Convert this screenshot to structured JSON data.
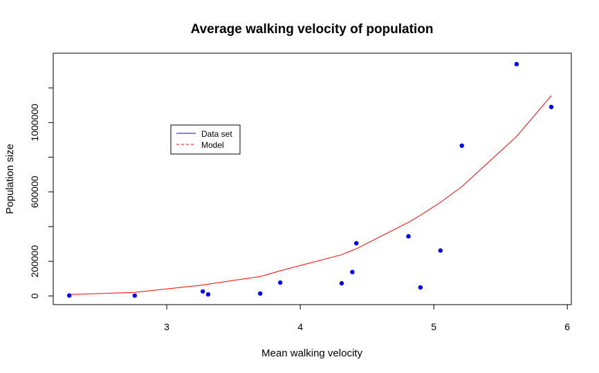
{
  "chart_data": {
    "type": "scatter",
    "title": "Average walking velocity of population",
    "xlabel": "Mean walking velocity",
    "ylabel": "Population size",
    "xlim": [
      2.15,
      6.03
    ],
    "ylim": [
      -50000,
      1400000
    ],
    "x_ticks": [
      3,
      4,
      5,
      6
    ],
    "x_tick_labels": [
      "3",
      "4",
      "5",
      "6"
    ],
    "y_ticks": [
      0,
      200000,
      600000,
      1000000
    ],
    "y_tick_labels": [
      "0",
      "200000",
      "600000",
      "1000000"
    ],
    "y_minor_ticks": [
      400000,
      800000,
      1200000
    ],
    "grid": false,
    "legend": {
      "position": "upper-left-inset",
      "entries": [
        {
          "label": "Data set",
          "color": "#0000ff",
          "line": "solid"
        },
        {
          "label": "Model",
          "color": "#ff0000",
          "line": "dashed"
        }
      ]
    },
    "series": [
      {
        "name": "Data set",
        "kind": "points",
        "color": "#0000ff",
        "x": [
          2.27,
          2.76,
          3.27,
          3.31,
          3.7,
          3.85,
          4.31,
          4.39,
          4.42,
          4.81,
          4.9,
          5.05,
          5.21,
          5.62,
          5.88
        ],
        "y": [
          2500,
          2000,
          26000,
          9000,
          14000,
          77000,
          73000,
          138000,
          304000,
          344000,
          49000,
          262000,
          867000,
          1337000,
          1090000
        ]
      },
      {
        "name": "Model",
        "kind": "line",
        "color": "#ff0000",
        "x": [
          2.27,
          2.76,
          3.27,
          3.31,
          3.7,
          3.85,
          4.31,
          4.39,
          4.42,
          4.81,
          4.9,
          5.05,
          5.21,
          5.62,
          5.88
        ],
        "y": [
          8000,
          21000,
          63000,
          68000,
          112000,
          145000,
          238000,
          263000,
          272000,
          425000,
          465000,
          540000,
          630000,
          920000,
          1155000
        ]
      }
    ]
  }
}
